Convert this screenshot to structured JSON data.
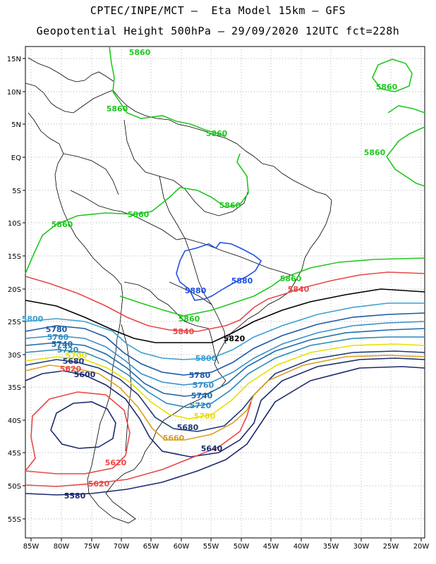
{
  "header": {
    "line1": "CPTEC/INPE/MCT –  Eta Model 15km – GFS",
    "line2": "Geopotential Height 500hPa – 29/09/2020 12UTC fct=228h"
  },
  "axes": {
    "lat_labels": [
      "15N",
      "10N",
      "5N",
      "EQ",
      "5S",
      "10S",
      "15S",
      "20S",
      "25S",
      "30S",
      "35S",
      "40S",
      "45S",
      "50S",
      "55S"
    ],
    "lon_labels": [
      "85W",
      "80W",
      "75W",
      "70W",
      "65W",
      "60W",
      "55W",
      "50W",
      "45W",
      "40W",
      "35W",
      "30W",
      "25W",
      "20W"
    ]
  },
  "colors": {
    "c5580": "#1c2a6e",
    "c5600": "#1c2a6e",
    "c5620": "#e84848",
    "c5660": "#d8a020",
    "c5680": "#1c3a78",
    "c5700": "#e8e000",
    "c5720": "#2a88b8",
    "c5740": "#1c6aa8",
    "c5760": "#3890c8",
    "c5780": "#1c58a8",
    "c5800": "#3aa0d0",
    "c5820": "#000000",
    "c5840": "#e84848",
    "c5860": "#20c820",
    "c5880": "#2050e0"
  },
  "contour_labels": [
    {
      "text": "5860",
      "color": "c5860"
    },
    {
      "text": "5860",
      "color": "c5860"
    },
    {
      "text": "5860",
      "color": "c5860"
    },
    {
      "text": "5860",
      "color": "c5860"
    },
    {
      "text": "5860",
      "color": "c5860"
    },
    {
      "text": "5860",
      "color": "c5860"
    },
    {
      "text": "5860",
      "color": "c5860"
    },
    {
      "text": "5860",
      "color": "c5860"
    },
    {
      "text": "5860",
      "color": "c5860"
    },
    {
      "text": "5860",
      "color": "c5860"
    },
    {
      "text": "5880",
      "color": "c5880"
    },
    {
      "text": "5880",
      "color": "c5880"
    },
    {
      "text": "5840",
      "color": "c5840"
    },
    {
      "text": "5840",
      "color": "c5840"
    },
    {
      "text": "5820",
      "color": "c5820"
    },
    {
      "text": "5800",
      "color": "c5800"
    },
    {
      "text": "5800",
      "color": "c5800"
    },
    {
      "text": "5780",
      "color": "c5780"
    },
    {
      "text": "5780",
      "color": "c5780"
    },
    {
      "text": "5760",
      "color": "c5760"
    },
    {
      "text": "5760",
      "color": "c5760"
    },
    {
      "text": "5740",
      "color": "c5740"
    },
    {
      "text": "5740",
      "color": "c5740"
    },
    {
      "text": "5720",
      "color": "c5720"
    },
    {
      "text": "5720",
      "color": "c5720"
    },
    {
      "text": "5700",
      "color": "c5700"
    },
    {
      "text": "5700",
      "color": "c5700"
    },
    {
      "text": "5680",
      "color": "c5680"
    },
    {
      "text": "5680",
      "color": "c5680"
    },
    {
      "text": "5660",
      "color": "c5660"
    },
    {
      "text": "5640",
      "color": "c5600"
    },
    {
      "text": "5600",
      "color": "c5600"
    },
    {
      "text": "5620",
      "color": "c5620"
    },
    {
      "text": "5620",
      "color": "c5620"
    },
    {
      "text": "5620",
      "color": "c5620"
    },
    {
      "text": "5580",
      "color": "c5580"
    }
  ]
}
